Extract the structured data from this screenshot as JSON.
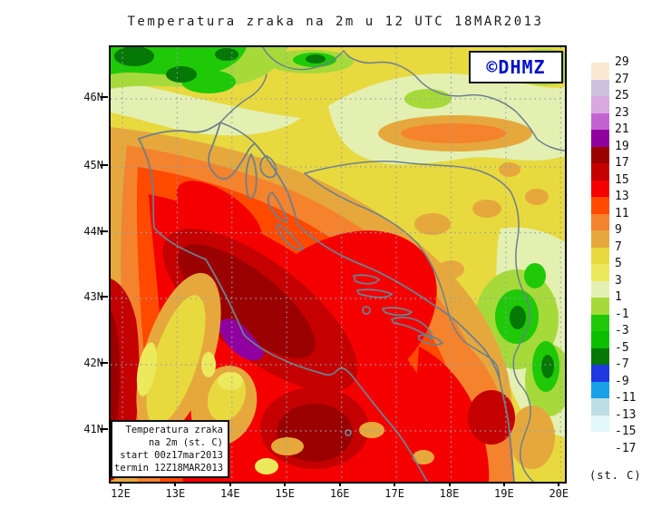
{
  "title": "Temperatura zraka na 2m u 12 UTC 18MAR2013",
  "logo": {
    "text": "©DHMZ",
    "color": "#0010C8"
  },
  "info_box": {
    "line1": "Temperatura zraka",
    "line2": "na 2m (st. C)",
    "line3": "start 00z17mar2013",
    "line4": "termin 12Z18MAR2013"
  },
  "axes": {
    "lat_labels": [
      "46N",
      "45N",
      "44N",
      "43N",
      "42N",
      "41N"
    ],
    "lon_labels": [
      "12E",
      "13E",
      "14E",
      "15E",
      "16E",
      "17E",
      "18E",
      "19E",
      "20E"
    ]
  },
  "legend": {
    "unit_label": "(st. C)",
    "tick_labels": [
      "29",
      "27",
      "25",
      "23",
      "21",
      "19",
      "17",
      "15",
      "13",
      "11",
      "9",
      "7",
      "5",
      "3",
      "1",
      "-1",
      "-3",
      "-5",
      "-7",
      "-9",
      "-11",
      "-13",
      "-15",
      "-17"
    ],
    "box_colors": [
      "#FBE8D1",
      "#CCC2DE",
      "#D9A8E0",
      "#C263D1",
      "#90009E",
      "#9B0000",
      "#C40000",
      "#F50000",
      "#FF4A00",
      "#F5822D",
      "#E6A83C",
      "#E8D93F",
      "#EDE95C",
      "#E3F0B2",
      "#A6DA3A",
      "#1FC908",
      "#0ABF00",
      "#067806",
      "#2038E0",
      "#18A0E8",
      "#BCDEE4",
      "#E2F7F9",
      "#FFFFFF"
    ]
  },
  "palette": {
    "base": "#E8D93F",
    "paleYG": "#E3F0B2",
    "yg": "#A6DA3A",
    "green": "#1FC908",
    "dgreen": "#067806",
    "gold": "#E6A83C",
    "orange": "#F5822D",
    "orred": "#FF4A00",
    "red": "#F50000",
    "dred": "#C40000",
    "maroon": "#9B0000",
    "purple": "#90009E",
    "brightY": "#EDE95C",
    "coast": "#6E7F8C",
    "grid": "#93A1AF"
  }
}
